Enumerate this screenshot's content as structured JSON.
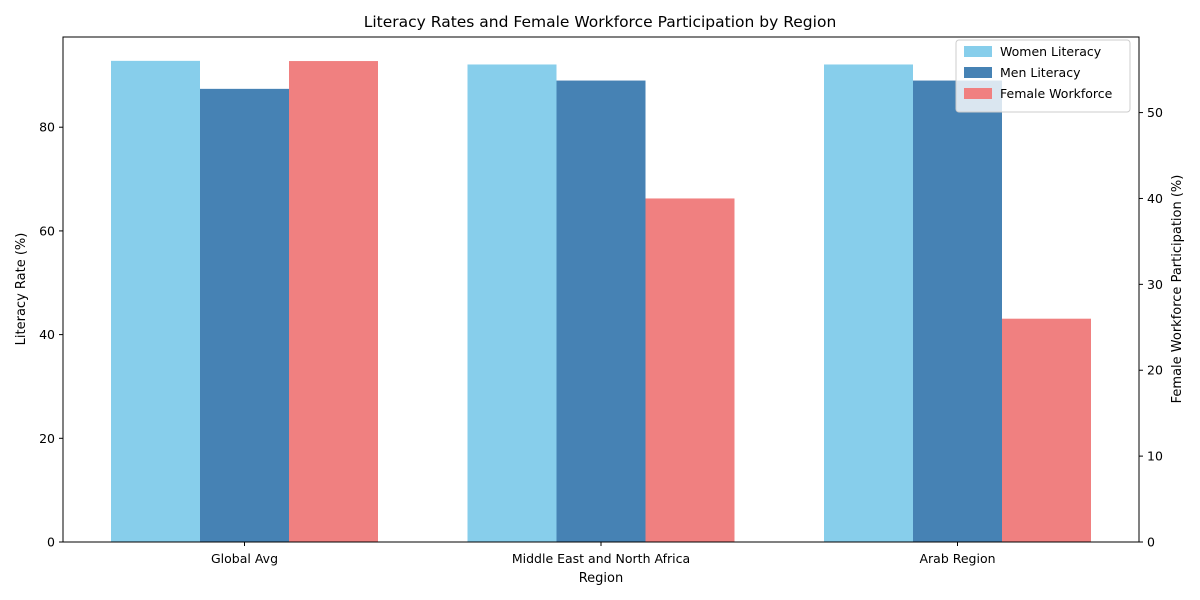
{
  "chart_data": {
    "type": "bar",
    "title": "Literacy Rates and Female Workforce Participation by Region",
    "xlabel": "Region",
    "ylabel": "Literacy Rate (%)",
    "ylabel_right": "Female Workforce Participation (%)",
    "categories": [
      "Global Avg",
      "Middle East and North Africa",
      "Arab Region"
    ],
    "series": [
      {
        "name": "Women Literacy",
        "axis": "left",
        "color": "#87ceeb",
        "values": [
          92.8,
          92.1,
          92.1
        ]
      },
      {
        "name": "Men Literacy",
        "axis": "left",
        "color": "#4682b4",
        "values": [
          87.4,
          89.0,
          89.0
        ]
      },
      {
        "name": "Female Workforce",
        "axis": "right",
        "color": "#f08080",
        "values": [
          56.0,
          40.0,
          26.0
        ]
      }
    ],
    "ylim": [
      0,
      97.4
    ],
    "ylim_right": [
      0,
      58.8
    ],
    "yticks": [
      0,
      20,
      40,
      60,
      80
    ],
    "yticks_right": [
      0,
      10,
      20,
      30,
      40,
      50
    ],
    "legend_position": "upper right",
    "grid": false
  }
}
